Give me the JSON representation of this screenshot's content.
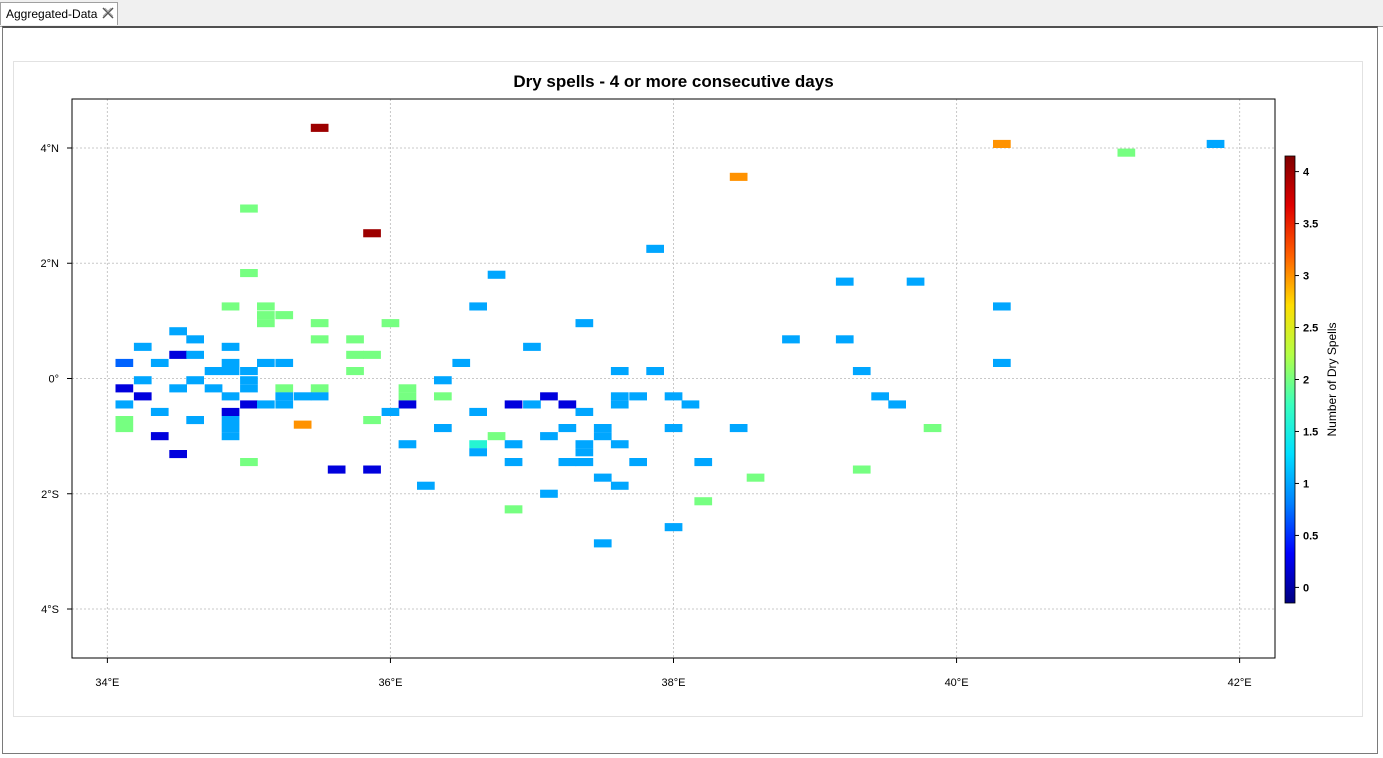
{
  "tab": {
    "label": "Aggregated-Data",
    "close_icon": "close-icon"
  },
  "chart_data": {
    "type": "heatmap",
    "title": "Dry spells - 4 or more consecutive days",
    "xlabel": "",
    "ylabel": "",
    "xlim": [
      33.75,
      42.25
    ],
    "ylim": [
      -4.85,
      4.85
    ],
    "x_ticks": [
      {
        "value": 34,
        "label": "34°E"
      },
      {
        "value": 36,
        "label": "36°E"
      },
      {
        "value": 38,
        "label": "38°E"
      },
      {
        "value": 40,
        "label": "40°E"
      },
      {
        "value": 42,
        "label": "42°E"
      }
    ],
    "y_ticks": [
      {
        "value": 4,
        "label": "4°N"
      },
      {
        "value": 2,
        "label": "2°N"
      },
      {
        "value": 0,
        "label": "0°"
      },
      {
        "value": -2,
        "label": "2°S"
      },
      {
        "value": -4,
        "label": "4°S"
      }
    ],
    "grid": true,
    "colorbar": {
      "label": "Number of Dry Spells",
      "min": -0.15,
      "max": 4.15,
      "ticks": [
        "0",
        "0.5",
        "1",
        "1.5",
        "2",
        "2.5",
        "3",
        "3.5",
        "4"
      ],
      "tick_values": [
        0,
        0.5,
        1,
        1.5,
        2,
        2.5,
        3,
        3.5,
        4
      ],
      "colors": [
        "#00007f",
        "#0000ff",
        "#007fff",
        "#00dfff",
        "#39ffbd",
        "#b3ff45",
        "#ffdd00",
        "#ff5f00",
        "#df0000",
        "#7f0000"
      ],
      "placement": "right"
    },
    "cell_size_deg": [
      0.125,
      0.14
    ],
    "points": [
      [
        35.5,
        4.35,
        4
      ],
      [
        35.87,
        2.52,
        4
      ],
      [
        38.46,
        3.5,
        3
      ],
      [
        40.32,
        4.07,
        3
      ],
      [
        35.38,
        -0.8,
        3
      ],
      [
        35.0,
        2.95,
        2
      ],
      [
        35.0,
        1.83,
        2
      ],
      [
        34.87,
        1.25,
        2
      ],
      [
        35.12,
        1.25,
        2
      ],
      [
        35.12,
        1.1,
        2
      ],
      [
        35.12,
        0.96,
        2
      ],
      [
        35.25,
        1.1,
        2
      ],
      [
        35.5,
        0.96,
        2
      ],
      [
        35.5,
        0.68,
        2
      ],
      [
        35.75,
        0.68,
        2
      ],
      [
        35.75,
        0.41,
        2
      ],
      [
        35.87,
        0.41,
        2
      ],
      [
        35.75,
        0.13,
        2
      ],
      [
        36.0,
        0.96,
        2
      ],
      [
        35.25,
        -0.17,
        2
      ],
      [
        35.5,
        -0.17,
        2
      ],
      [
        35.87,
        -0.72,
        2
      ],
      [
        36.12,
        -0.17,
        2
      ],
      [
        36.12,
        -0.31,
        2
      ],
      [
        36.37,
        -0.31,
        2
      ],
      [
        34.12,
        -0.72,
        2
      ],
      [
        34.12,
        -0.86,
        2
      ],
      [
        35.0,
        -1.45,
        2
      ],
      [
        36.75,
        -1.0,
        2
      ],
      [
        36.87,
        -2.27,
        2
      ],
      [
        38.21,
        -2.13,
        2
      ],
      [
        38.58,
        -1.72,
        2
      ],
      [
        39.33,
        -1.58,
        2
      ],
      [
        39.83,
        -0.86,
        2
      ],
      [
        41.2,
        3.92,
        2
      ],
      [
        36.62,
        -1.14,
        1.6
      ],
      [
        34.12,
        0.27,
        0.7
      ],
      [
        34.12,
        -0.17,
        0.2
      ],
      [
        34.25,
        -0.31,
        0.2
      ],
      [
        34.5,
        0.41,
        0.2
      ],
      [
        34.37,
        -1.0,
        0.2
      ],
      [
        34.5,
        -1.31,
        0.2
      ],
      [
        34.87,
        -0.58,
        0.2
      ],
      [
        35.0,
        -0.45,
        0.2
      ],
      [
        35.62,
        -1.58,
        0.2
      ],
      [
        35.87,
        -1.58,
        0.2
      ],
      [
        36.12,
        -0.45,
        0.2
      ],
      [
        36.87,
        -0.45,
        0.2
      ],
      [
        37.12,
        -0.31,
        0.2
      ],
      [
        37.25,
        -0.45,
        0.2
      ],
      [
        34.25,
        0.55,
        1
      ],
      [
        34.37,
        0.27,
        1
      ],
      [
        34.25,
        -0.03,
        1
      ],
      [
        34.12,
        -0.45,
        1
      ],
      [
        34.37,
        -0.58,
        1
      ],
      [
        34.5,
        0.82,
        1
      ],
      [
        34.62,
        0.68,
        1
      ],
      [
        34.62,
        0.41,
        1
      ],
      [
        34.62,
        -0.03,
        1
      ],
      [
        34.5,
        -0.17,
        1
      ],
      [
        34.62,
        -0.72,
        1
      ],
      [
        34.75,
        0.13,
        1
      ],
      [
        34.75,
        -0.17,
        1
      ],
      [
        34.87,
        0.55,
        1
      ],
      [
        34.87,
        0.27,
        1
      ],
      [
        34.87,
        0.13,
        1
      ],
      [
        34.87,
        -0.31,
        1
      ],
      [
        34.87,
        -0.72,
        1
      ],
      [
        34.87,
        -0.86,
        1
      ],
      [
        34.87,
        -1.0,
        1
      ],
      [
        35.0,
        0.13,
        1
      ],
      [
        35.0,
        -0.03,
        1
      ],
      [
        35.0,
        -0.17,
        1
      ],
      [
        35.12,
        0.27,
        1
      ],
      [
        35.25,
        0.27,
        1
      ],
      [
        35.12,
        -0.45,
        1
      ],
      [
        35.25,
        -0.45,
        1
      ],
      [
        35.25,
        -0.31,
        1
      ],
      [
        35.38,
        -0.31,
        1
      ],
      [
        35.5,
        -0.31,
        1
      ],
      [
        36.0,
        -0.58,
        1
      ],
      [
        36.12,
        -1.14,
        1
      ],
      [
        36.25,
        -1.86,
        1
      ],
      [
        36.37,
        -0.03,
        1
      ],
      [
        36.37,
        -0.86,
        1
      ],
      [
        36.5,
        0.27,
        1
      ],
      [
        36.62,
        1.25,
        1
      ],
      [
        36.62,
        -0.58,
        1
      ],
      [
        36.62,
        -1.28,
        1
      ],
      [
        36.75,
        1.8,
        1
      ],
      [
        36.87,
        -1.14,
        1
      ],
      [
        36.87,
        -1.45,
        1
      ],
      [
        37.0,
        0.55,
        1
      ],
      [
        37.0,
        -0.45,
        1
      ],
      [
        37.12,
        -1.0,
        1
      ],
      [
        37.12,
        -2.0,
        1
      ],
      [
        37.25,
        -0.86,
        1
      ],
      [
        37.25,
        -1.45,
        1
      ],
      [
        37.37,
        0.96,
        1
      ],
      [
        37.37,
        -0.58,
        1
      ],
      [
        37.37,
        -1.14,
        1
      ],
      [
        37.37,
        -1.28,
        1
      ],
      [
        37.37,
        -1.45,
        1
      ],
      [
        37.5,
        -0.86,
        1
      ],
      [
        37.5,
        -1.0,
        1
      ],
      [
        37.5,
        -1.72,
        1
      ],
      [
        37.5,
        -2.86,
        1
      ],
      [
        37.62,
        0.13,
        1
      ],
      [
        37.62,
        -0.31,
        1
      ],
      [
        37.62,
        -0.45,
        1
      ],
      [
        37.62,
        -1.14,
        1
      ],
      [
        37.62,
        -1.86,
        1
      ],
      [
        37.75,
        -0.31,
        1
      ],
      [
        37.75,
        -1.45,
        1
      ],
      [
        37.87,
        2.25,
        1
      ],
      [
        37.87,
        0.13,
        1
      ],
      [
        38.0,
        -0.31,
        1
      ],
      [
        38.0,
        -0.86,
        1
      ],
      [
        38.0,
        -2.58,
        1
      ],
      [
        38.12,
        -0.45,
        1
      ],
      [
        38.21,
        -1.45,
        1
      ],
      [
        38.46,
        -0.86,
        1
      ],
      [
        38.83,
        0.68,
        1
      ],
      [
        39.21,
        1.68,
        1
      ],
      [
        39.21,
        0.68,
        1
      ],
      [
        39.33,
        0.13,
        1
      ],
      [
        39.46,
        -0.31,
        1
      ],
      [
        39.58,
        -0.45,
        1
      ],
      [
        39.71,
        1.68,
        1
      ],
      [
        40.32,
        1.25,
        1
      ],
      [
        40.32,
        0.27,
        1
      ],
      [
        41.83,
        4.07,
        1
      ]
    ]
  }
}
